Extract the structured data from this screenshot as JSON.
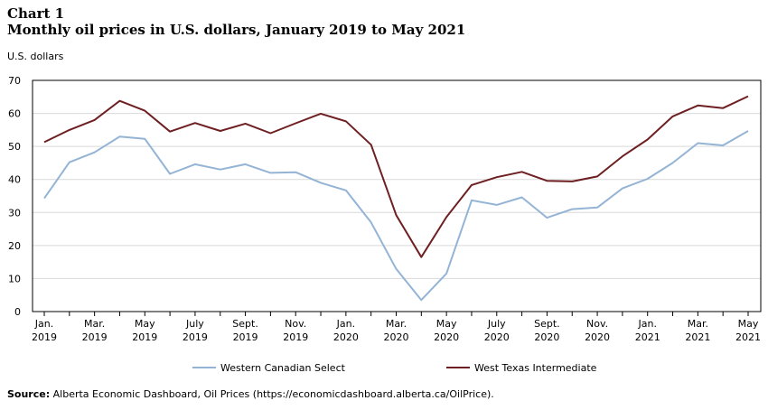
{
  "header": {
    "chart_number": "Chart 1",
    "title": "Monthly oil prices in U.S. dollars, January 2019 to May 2021"
  },
  "source": {
    "label": "Source:",
    "text": "Alberta Economic Dashboard, Oil Prices (https://economicdashboard.alberta.ca/OilPrice)."
  },
  "chart_data": {
    "type": "line",
    "title": "Monthly oil prices in U.S. dollars, January 2019 to May 2021",
    "ylabel": "U.S. dollars",
    "xlabel": "",
    "ylim": [
      0,
      70
    ],
    "yticks": [
      0,
      10,
      20,
      30,
      40,
      50,
      60,
      70
    ],
    "grid": true,
    "legend_position": "bottom",
    "x": [
      "2019-01",
      "2019-02",
      "2019-03",
      "2019-04",
      "2019-05",
      "2019-06",
      "2019-07",
      "2019-08",
      "2019-09",
      "2019-10",
      "2019-11",
      "2019-12",
      "2020-01",
      "2020-02",
      "2020-03",
      "2020-04",
      "2020-05",
      "2020-06",
      "2020-07",
      "2020-08",
      "2020-09",
      "2020-10",
      "2020-11",
      "2020-12",
      "2021-01",
      "2021-02",
      "2021-03",
      "2021-04",
      "2021-05"
    ],
    "xtick_labels": [
      {
        "index": 0,
        "line1": "Jan.",
        "line2": "2019"
      },
      {
        "index": 2,
        "line1": "Mar.",
        "line2": "2019"
      },
      {
        "index": 4,
        "line1": "May",
        "line2": "2019"
      },
      {
        "index": 6,
        "line1": "July",
        "line2": "2019"
      },
      {
        "index": 8,
        "line1": "Sept.",
        "line2": "2019"
      },
      {
        "index": 10,
        "line1": "Nov.",
        "line2": "2019"
      },
      {
        "index": 12,
        "line1": "Jan.",
        "line2": "2020"
      },
      {
        "index": 14,
        "line1": "Mar.",
        "line2": "2020"
      },
      {
        "index": 16,
        "line1": "May",
        "line2": "2020"
      },
      {
        "index": 18,
        "line1": "July",
        "line2": "2020"
      },
      {
        "index": 20,
        "line1": "Sept.",
        "line2": "2020"
      },
      {
        "index": 22,
        "line1": "Nov.",
        "line2": "2020"
      },
      {
        "index": 24,
        "line1": "Jan.",
        "line2": "2021"
      },
      {
        "index": 26,
        "line1": "Mar.",
        "line2": "2021"
      },
      {
        "index": 28,
        "line1": "May",
        "line2": "2021"
      }
    ],
    "series": [
      {
        "name": "Western Canadian Select",
        "color": "#94b4d6",
        "values": [
          34.3,
          45.2,
          48.2,
          53.0,
          52.3,
          41.7,
          44.6,
          43.0,
          44.6,
          42.0,
          42.2,
          39.0,
          36.7,
          27.0,
          12.9,
          3.5,
          11.5,
          33.7,
          32.3,
          34.6,
          28.4,
          31.0,
          31.5,
          37.3,
          40.2,
          45.0,
          51.0,
          50.3,
          54.7
        ]
      },
      {
        "name": "West Texas Intermediate",
        "color": "#6e1f22",
        "values": [
          51.3,
          55.0,
          58.0,
          63.8,
          60.8,
          54.5,
          57.1,
          54.7,
          56.9,
          54.0,
          57.0,
          59.9,
          57.6,
          50.5,
          29.2,
          16.5,
          28.6,
          38.3,
          40.7,
          42.3,
          39.6,
          39.4,
          40.9,
          47.0,
          52.1,
          59.1,
          62.4,
          61.6,
          65.2
        ]
      }
    ]
  }
}
